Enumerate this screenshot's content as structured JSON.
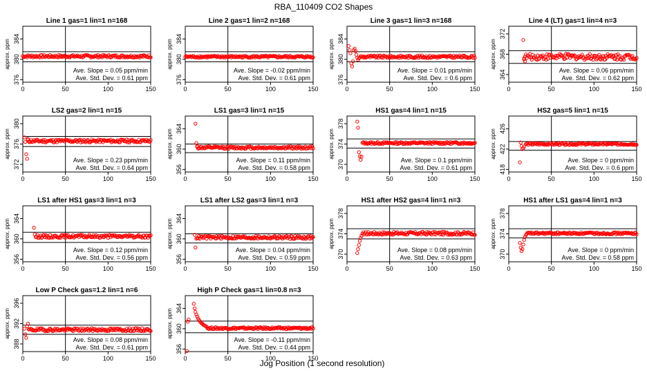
{
  "title": "RBA_110409  CO2 Shapes",
  "xlabel": "Jog Position (1 second resolution)",
  "colors": {
    "points": "#ff0000",
    "axes": "#000000"
  },
  "chart_data": [
    {
      "type": "scatter",
      "title": "Line 1 gas=1 lin=1 n=168",
      "ylabel": "approx. ppm",
      "xlim": [
        0,
        150
      ],
      "xticks": [
        0,
        50,
        100,
        150
      ],
      "ylim": [
        375.5,
        386.5
      ],
      "yticks": [
        376,
        380,
        384
      ],
      "hlines": [
        381.5,
        379.5
      ],
      "vline": 50,
      "slope_text": "Ave. Slope = 0.05 ppm/min",
      "std_text": "Ave. Std. Dev. = 0.61 ppm",
      "profile": {
        "x_start": 0,
        "x_end": 150,
        "base": 380.6,
        "noise": 0.25,
        "points": []
      }
    },
    {
      "type": "scatter",
      "title": "Line 2 gas=1 lin=2 n=168",
      "ylabel": "approx. ppm",
      "xlim": [
        0,
        150
      ],
      "xticks": [
        0,
        50,
        100,
        150
      ],
      "ylim": [
        375.5,
        386.5
      ],
      "yticks": [
        376,
        380,
        384
      ],
      "hlines": [
        381.5,
        379.5
      ],
      "vline": 50,
      "slope_text": "Ave. Slope = -0.02 ppm/min",
      "std_text": "Ave. Std. Dev. = 0.61 ppm",
      "profile": {
        "x_start": 0,
        "x_end": 150,
        "base": 380.5,
        "noise": 0.2,
        "points": []
      }
    },
    {
      "type": "scatter",
      "title": "Line 3 gas=1 lin=3 n=168",
      "ylabel": "approx. ppm",
      "xlim": [
        0,
        150
      ],
      "xticks": [
        0,
        50,
        100,
        150
      ],
      "ylim": [
        375.5,
        386.5
      ],
      "yticks": [
        376,
        380,
        384
      ],
      "hlines": [
        381.5,
        379.5
      ],
      "vline": 50,
      "slope_text": "Ave. Slope = 0.01 ppm/min",
      "std_text": "Ave. Std. Dev. = 0.6 ppm",
      "profile": {
        "x_start": 15,
        "x_end": 150,
        "base": 380.5,
        "noise": 0.25,
        "points": [
          [
            2,
            382.6
          ],
          [
            3,
            381.8
          ],
          [
            4,
            381.2
          ],
          [
            5,
            379.2
          ],
          [
            6,
            378.6
          ],
          [
            7,
            379.6
          ],
          [
            8,
            381.8
          ],
          [
            9,
            382.1
          ],
          [
            10,
            381.6
          ],
          [
            11,
            380.9
          ],
          [
            12,
            380.3
          ],
          [
            13,
            379.9
          ],
          [
            14,
            380.2
          ]
        ]
      }
    },
    {
      "type": "scatter",
      "title": "Line 4 (LT) gas=1 lin=4 n=3",
      "ylabel": "approx. ppm",
      "xlim": [
        0,
        150
      ],
      "xticks": [
        0,
        50,
        100,
        150
      ],
      "ylim": [
        362.5,
        373.5
      ],
      "yticks": [
        364,
        368,
        372
      ],
      "hlines": [
        368.7,
        366.2
      ],
      "vline": 50,
      "slope_text": "Ave. Slope = 0.06 ppm/min",
      "std_text": "Ave. Std. Dev. = 0.62 ppm",
      "profile": {
        "x_start": 18,
        "x_end": 150,
        "base": 367.5,
        "noise": 0.6,
        "points": [
          [
            17,
            370.8
          ],
          [
            18,
            367.2
          ],
          [
            19,
            366.6
          ]
        ]
      }
    },
    {
      "type": "scatter",
      "title": "LS2 gas=2 lin=1 n=15",
      "ylabel": "approx. ppm",
      "xlim": [
        0,
        150
      ],
      "xticks": [
        0,
        50,
        100,
        150
      ],
      "ylim": [
        370.5,
        381.5
      ],
      "yticks": [
        372,
        376,
        380
      ],
      "hlines": [
        377.5,
        375.5
      ],
      "vline": 50,
      "slope_text": "Ave. Slope = 0.23 ppm/min",
      "std_text": "Ave. Std. Dev. = 0.64 ppm",
      "profile": {
        "x_start": 6,
        "x_end": 150,
        "base": 376.6,
        "noise": 0.3,
        "points": [
          [
            2,
            377.3
          ],
          [
            3,
            376.4
          ],
          [
            4,
            374.0
          ],
          [
            5,
            373.1
          ],
          [
            6,
            377.0
          ]
        ]
      }
    },
    {
      "type": "scatter",
      "title": "LS1 gas=3 lin=1 n=15",
      "ylabel": "approx. ppm",
      "xlim": [
        0,
        150
      ],
      "xticks": [
        0,
        50,
        100,
        150
      ],
      "ylim": [
        355.5,
        366.5
      ],
      "yticks": [
        356,
        360,
        364
      ],
      "hlines": [
        361.0,
        359.3
      ],
      "vline": 50,
      "slope_text": "Ave. Slope = 0.11 ppm/min",
      "std_text": "Ave. Std. Dev. = 0.58 ppm",
      "profile": {
        "x_start": 14,
        "x_end": 150,
        "base": 360.3,
        "noise": 0.25,
        "points": [
          [
            12,
            365.0
          ],
          [
            13,
            361.2
          ],
          [
            14,
            360.6
          ]
        ]
      }
    },
    {
      "type": "scatter",
      "title": "HS1 gas=4 lin=1 n=15",
      "ylabel": "approx. ppm",
      "xlim": [
        0,
        150
      ],
      "xticks": [
        0,
        50,
        100,
        150
      ],
      "ylim": [
        368.5,
        379.5
      ],
      "yticks": [
        370,
        374,
        378
      ],
      "hlines": [
        375.0,
        373.2
      ],
      "vline": 50,
      "slope_text": "Ave. Slope = 0.1 ppm/min",
      "std_text": "Ave. Std. Dev. = 0.61 ppm",
      "profile": {
        "x_start": 18,
        "x_end": 150,
        "base": 374.2,
        "noise": 0.2,
        "points": [
          [
            12,
            378.4
          ],
          [
            13,
            377.2
          ],
          [
            14,
            372.4
          ],
          [
            15,
            371.6
          ],
          [
            16,
            370.9
          ],
          [
            17,
            371.5
          ]
        ]
      }
    },
    {
      "type": "scatter",
      "title": "HS2 gas=5 lin=1 n=15",
      "ylabel": "approx. ppm",
      "xlim": [
        0,
        150
      ],
      "xticks": [
        0,
        50,
        100,
        150
      ],
      "ylim": [
        417.5,
        428.5
      ],
      "yticks": [
        418,
        422,
        426
      ],
      "hlines": [
        423.5,
        421.8
      ],
      "vline": 50,
      "slope_text": "Ave. Slope = 0 ppm/min",
      "std_text": "Ave. Std. Dev. = 0.6 ppm",
      "profile": {
        "x_start": 20,
        "x_end": 150,
        "base": 423.0,
        "noise": 0.2,
        "points": [
          [
            13,
            419.4
          ],
          [
            14,
            423.3
          ],
          [
            15,
            422.6
          ],
          [
            16,
            422.0
          ],
          [
            17,
            422.2
          ],
          [
            18,
            422.5
          ]
        ]
      }
    },
    {
      "type": "scatter",
      "title": "LS1 after HS1 gas=3 lin=1 n=3",
      "ylabel": "approx. ppm",
      "xlim": [
        0,
        150
      ],
      "xticks": [
        0,
        50,
        100,
        150
      ],
      "ylim": [
        355.5,
        366.5
      ],
      "yticks": [
        356,
        360,
        364
      ],
      "hlines": [
        361.3,
        359.3
      ],
      "vline": 50,
      "slope_text": "Ave. Slope = 0.12 ppm/min",
      "std_text": "Ave. Std. Dev. = 0.56 ppm",
      "profile": {
        "x_start": 15,
        "x_end": 150,
        "base": 360.5,
        "noise": 0.3,
        "points": [
          [
            13,
            362.2
          ],
          [
            14,
            360.9
          ]
        ]
      }
    },
    {
      "type": "scatter",
      "title": "LS1 after LS2 gas=3 lin=1 n=3",
      "ylabel": "approx. ppm",
      "xlim": [
        0,
        150
      ],
      "xticks": [
        0,
        50,
        100,
        150
      ],
      "ylim": [
        355.5,
        366.5
      ],
      "yticks": [
        356,
        360,
        364
      ],
      "hlines": [
        361.0,
        359.2
      ],
      "vline": 50,
      "slope_text": "Ave. Slope = 0.04 ppm/min",
      "std_text": "Ave. Std. Dev. = 0.59 ppm",
      "profile": {
        "x_start": 13,
        "x_end": 150,
        "base": 360.3,
        "noise": 0.3,
        "points": [
          [
            11,
            360.8
          ],
          [
            12,
            358.3
          ]
        ]
      }
    },
    {
      "type": "scatter",
      "title": "HS1 after HS2 gas=4 lin=1 n=3",
      "ylabel": "approx. ppm",
      "xlim": [
        0,
        150
      ],
      "xticks": [
        0,
        50,
        100,
        150
      ],
      "ylim": [
        368.5,
        379.5
      ],
      "yticks": [
        370,
        374,
        378
      ],
      "hlines": [
        375.0,
        373.0
      ],
      "vline": 50,
      "slope_text": "Ave. Slope = 0.08 ppm/min",
      "std_text": "Ave. Std. Dev. = 0.63 ppm",
      "profile": {
        "x_start": 22,
        "x_end": 150,
        "base": 374.1,
        "noise": 0.3,
        "points": [
          [
            12,
            370.2
          ],
          [
            13,
            371.0
          ],
          [
            14,
            371.8
          ],
          [
            15,
            372.6
          ],
          [
            16,
            373.2
          ],
          [
            17,
            373.6
          ],
          [
            18,
            374.0
          ],
          [
            19,
            374.3
          ],
          [
            20,
            373.9
          ],
          [
            21,
            374.1
          ]
        ]
      }
    },
    {
      "type": "scatter",
      "title": "HS1 after LS1 gas=4 lin=1 n=3",
      "ylabel": "approx. ppm",
      "xlim": [
        0,
        150
      ],
      "xticks": [
        0,
        50,
        100,
        150
      ],
      "ylim": [
        368.5,
        379.5
      ],
      "yticks": [
        370,
        374,
        378
      ],
      "hlines": [
        375.0,
        373.2
      ],
      "vline": 50,
      "slope_text": "Ave. Slope = 0 ppm/min",
      "std_text": "Ave. Std. Dev. = 0.58 ppm",
      "profile": {
        "x_start": 22,
        "x_end": 150,
        "base": 374.1,
        "noise": 0.2,
        "points": [
          [
            13,
            372.2
          ],
          [
            14,
            371.3
          ],
          [
            15,
            370.6
          ],
          [
            16,
            371.0
          ],
          [
            17,
            371.9
          ],
          [
            18,
            372.8
          ],
          [
            19,
            373.4
          ],
          [
            20,
            373.7
          ],
          [
            21,
            374.0
          ]
        ]
      }
    },
    {
      "type": "scatter",
      "title": "Low P Check gas=1.2 lin=1 n=6",
      "ylabel": "approx. ppm",
      "xlim": [
        0,
        150
      ],
      "xticks": [
        0,
        50,
        100,
        150
      ],
      "ylim": [
        386.5,
        397.5
      ],
      "yticks": [
        388,
        392,
        396
      ],
      "hlines": [
        391.7,
        389.9
      ],
      "vline": 50,
      "slope_text": "Ave. Slope = 0.08 ppm/min",
      "std_text": "Ave. Std. Dev. = 0.61 ppm",
      "profile": {
        "x_start": 7,
        "x_end": 150,
        "base": 390.8,
        "noise": 0.3,
        "points": [
          [
            2,
            391.0
          ],
          [
            3,
            389.9
          ],
          [
            4,
            389.2
          ],
          [
            5,
            391.5
          ],
          [
            6,
            392.0
          ]
        ]
      }
    },
    {
      "type": "scatter",
      "title": "High P Check gas=1 lin=0.8 n=3",
      "ylabel": "approx. ppm",
      "xlim": [
        0,
        150
      ],
      "xticks": [
        0,
        50,
        100,
        150
      ],
      "ylim": [
        355.5,
        366.5
      ],
      "yticks": [
        356,
        360,
        364
      ],
      "hlines": [
        361.5,
        359.2
      ],
      "vline": 50,
      "slope_text": "Ave. Slope = -0.11 ppm/min",
      "std_text": "Ave. Std. Dev. = 0.44 ppm",
      "profile": {
        "x_start": 26,
        "x_end": 150,
        "base": 360.1,
        "noise": 0.2,
        "points": [
          [
            2,
            355.6
          ],
          [
            3,
            361.4
          ],
          [
            4,
            361.8
          ],
          [
            10,
            364.9
          ],
          [
            11,
            364.0
          ],
          [
            12,
            363.3
          ],
          [
            13,
            362.8
          ],
          [
            14,
            362.4
          ],
          [
            15,
            362.0
          ],
          [
            16,
            361.7
          ],
          [
            17,
            361.5
          ],
          [
            18,
            361.3
          ],
          [
            19,
            361.1
          ],
          [
            20,
            361.0
          ],
          [
            21,
            360.8
          ],
          [
            22,
            360.7
          ],
          [
            23,
            360.6
          ],
          [
            24,
            360.5
          ],
          [
            25,
            360.4
          ]
        ]
      }
    }
  ]
}
